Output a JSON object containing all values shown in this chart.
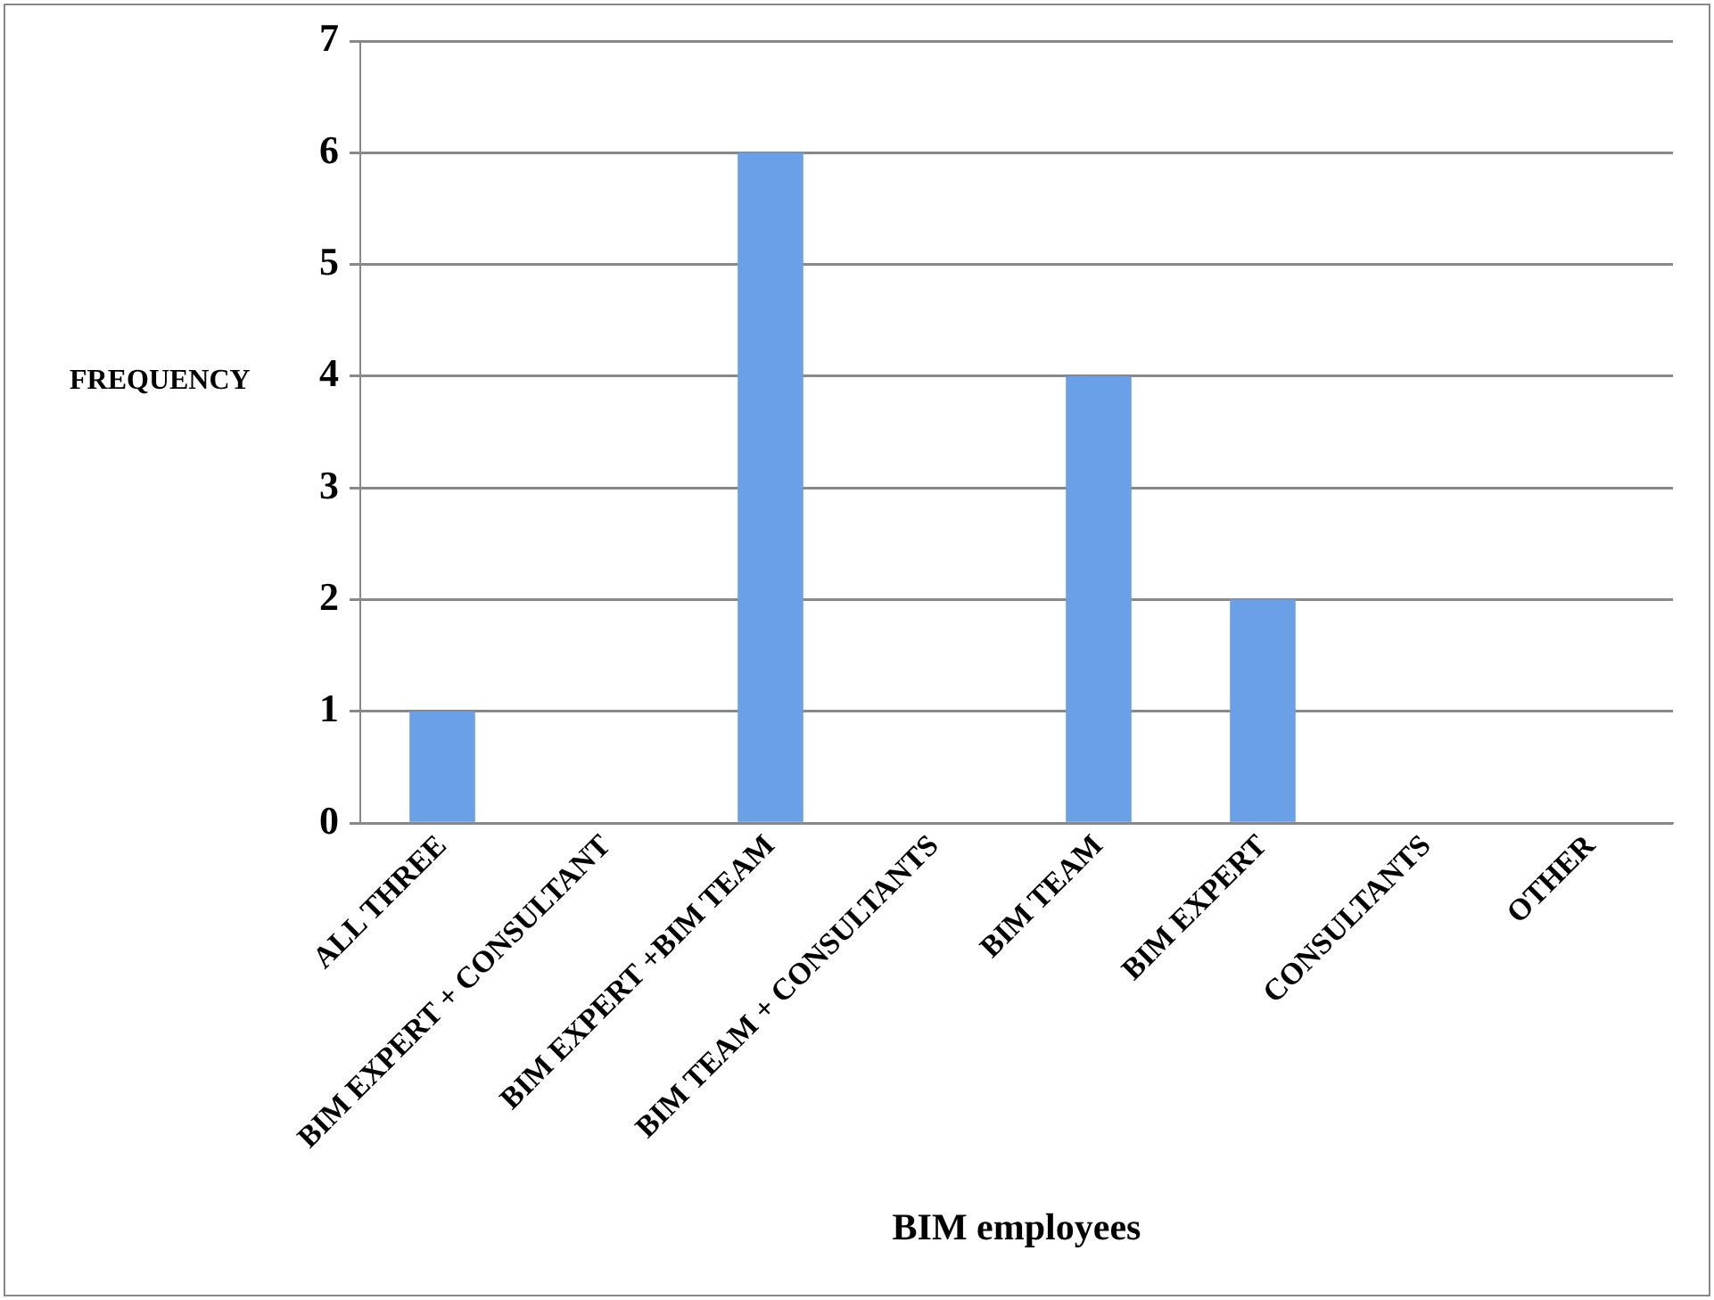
{
  "chart_data": {
    "type": "bar",
    "xlabel": "BIM employees",
    "ylabel": "FREQUENCY",
    "categories": [
      "ALL THREE",
      "BIM EXPERT + CONSULTANT",
      "BIM EXPERT +BIM TEAM",
      "BIM TEAM + CONSULTANTS",
      "BIM TEAM",
      "BIM EXPERT",
      "CONSULTANTS",
      "OTHER"
    ],
    "values": [
      1,
      0,
      6,
      0,
      4,
      2,
      0,
      0
    ],
    "color": "#6aa0e8",
    "ylim": [
      0,
      7
    ],
    "yticks": [
      0,
      1,
      2,
      3,
      4,
      5,
      6,
      7
    ],
    "grid": "y"
  }
}
